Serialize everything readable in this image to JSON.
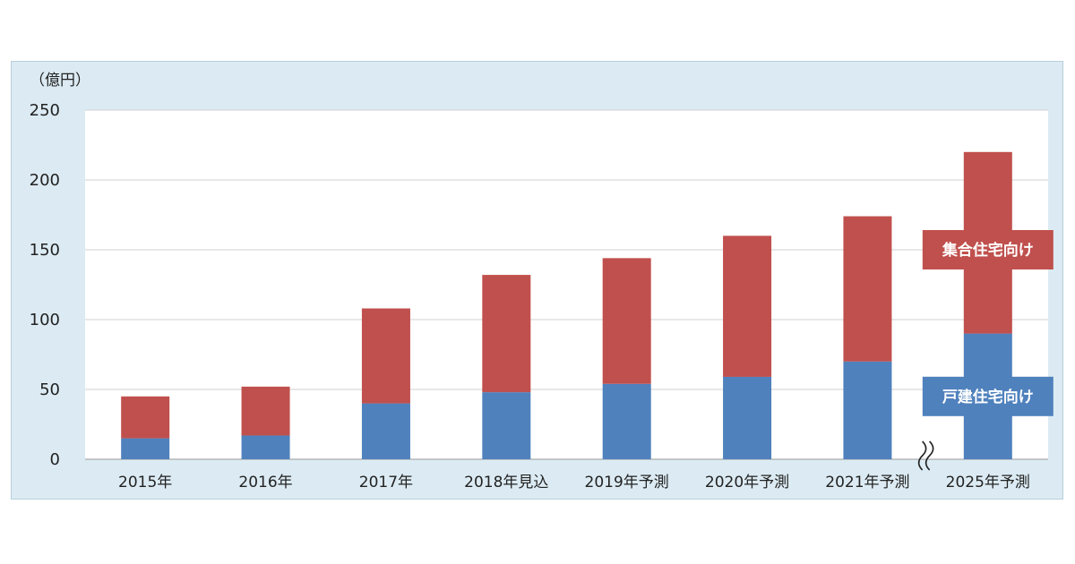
{
  "chart_data": {
    "type": "bar",
    "stacked": true,
    "y_unit": "（億円）",
    "ylim": [
      0,
      250
    ],
    "yticks": [
      "0",
      "50",
      "100",
      "150",
      "200",
      "250"
    ],
    "grid": true,
    "axis_break_before_last_category": true,
    "categories": [
      "2015年",
      "2016年",
      "2017年",
      "2018年見込",
      "2019年予測",
      "2020年予測",
      "2021年予測",
      "2025年予測"
    ],
    "series": [
      {
        "name": "戸建住宅向け",
        "color": "#4f81bd",
        "values": [
          15,
          17,
          40,
          48,
          54,
          59,
          70,
          90
        ]
      },
      {
        "name": "集合住宅向け",
        "color": "#c0504d",
        "values": [
          30,
          35,
          68,
          84,
          90,
          101,
          104,
          130
        ]
      }
    ],
    "legend_placement": "inside-right, labels over bars"
  }
}
